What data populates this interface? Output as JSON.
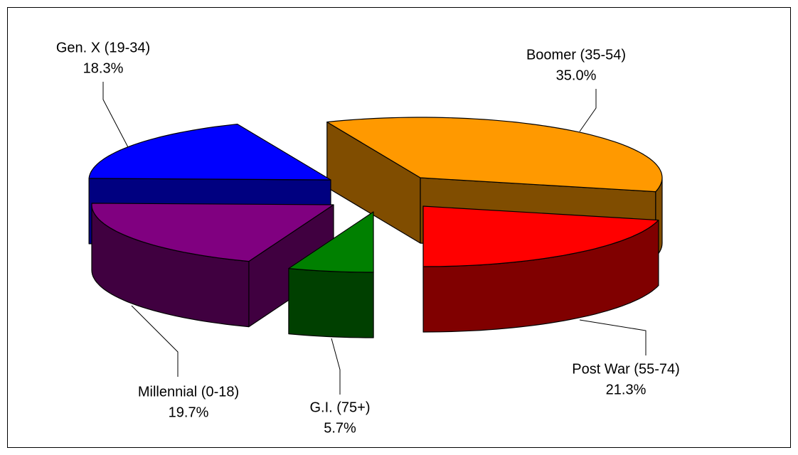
{
  "chart_data": {
    "type": "pie3d",
    "categories": [
      "Boomer (35-54)",
      "Post War (55-74)",
      "G.I. (75+)",
      "Millennial (0-18)",
      "Gen. X (19-34)"
    ],
    "values": [
      35.0,
      21.3,
      5.7,
      19.7,
      18.3
    ],
    "value_labels": [
      "35.0%",
      "21.3%",
      "5.7%",
      "19.7%",
      "18.3%"
    ],
    "colors": [
      "#ff9900",
      "#ff0000",
      "#008000",
      "#800080",
      "#0000ff"
    ]
  }
}
